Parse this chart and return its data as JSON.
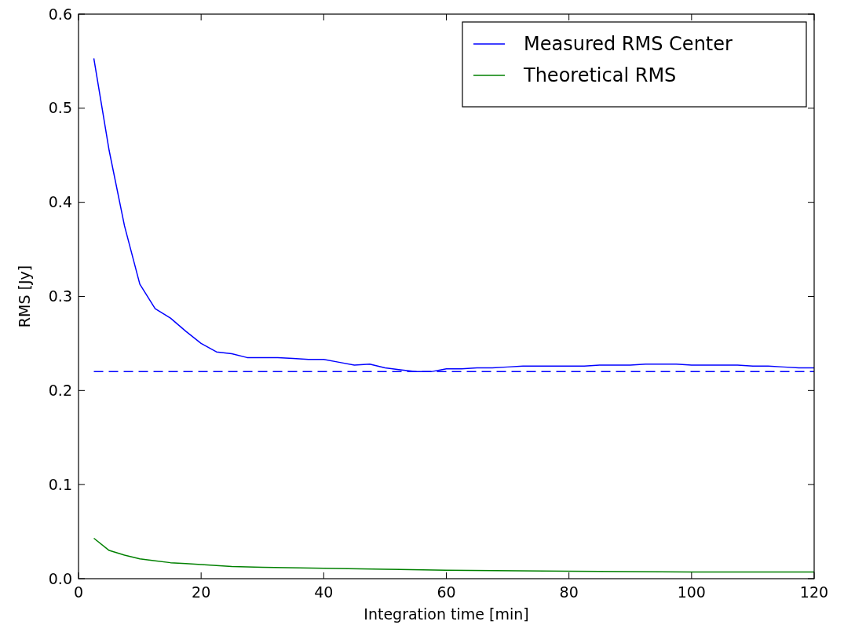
{
  "chart_data": {
    "type": "line",
    "xlabel": "Integration time [min]",
    "ylabel": "RMS [Jy]",
    "xlim": [
      0,
      120
    ],
    "ylim": [
      0,
      0.6
    ],
    "xticks": [
      0,
      20,
      40,
      60,
      80,
      100,
      120
    ],
    "yticks": [
      {
        "value": 0,
        "label": "0.0"
      },
      0.1,
      0.2,
      0.3,
      0.4,
      0.5,
      0.6
    ],
    "grid": false,
    "legend": "top right",
    "marker": "none",
    "series": [
      {
        "name": "Measured RMS Center",
        "color": "#0000ff",
        "x": [
          2.5,
          5,
          7.5,
          10,
          12.5,
          15,
          17.5,
          20,
          22.5,
          25,
          27.5,
          30,
          32.5,
          35,
          37.5,
          40,
          42.5,
          45,
          47.5,
          50,
          52.5,
          55,
          57.5,
          60,
          62.5,
          65,
          67.5,
          70,
          72.5,
          75,
          77.5,
          80,
          82.5,
          85,
          87.5,
          90,
          92.5,
          95,
          97.5,
          100,
          102.5,
          105,
          107.5,
          110,
          112.5,
          115,
          117.5,
          120
        ],
        "values": [
          0.553,
          0.455,
          0.375,
          0.313,
          0.287,
          0.277,
          0.263,
          0.25,
          0.241,
          0.239,
          0.235,
          0.235,
          0.235,
          0.234,
          0.233,
          0.233,
          0.23,
          0.227,
          0.228,
          0.224,
          0.222,
          0.22,
          0.22,
          0.223,
          0.223,
          0.224,
          0.224,
          0.225,
          0.226,
          0.226,
          0.226,
          0.226,
          0.226,
          0.227,
          0.227,
          0.227,
          0.228,
          0.228,
          0.228,
          0.227,
          0.227,
          0.227,
          0.227,
          0.226,
          0.226,
          0.225,
          0.224,
          0.224
        ]
      },
      {
        "name": "Theoretical RMS",
        "color": "#008000",
        "x": [
          2.5,
          5,
          7.5,
          10,
          12.5,
          15,
          17.5,
          20,
          25,
          30,
          40,
          50,
          60,
          80,
          100,
          120
        ],
        "values": [
          0.043,
          0.03,
          0.025,
          0.021,
          0.019,
          0.017,
          0.016,
          0.015,
          0.013,
          0.012,
          0.011,
          0.01,
          0.009,
          0.008,
          0.007,
          0.007
        ]
      },
      {
        "color": "#0000ff",
        "line_style": "dashed",
        "x": [
          2.5,
          120
        ],
        "values": [
          0.22,
          0.22
        ]
      }
    ]
  }
}
